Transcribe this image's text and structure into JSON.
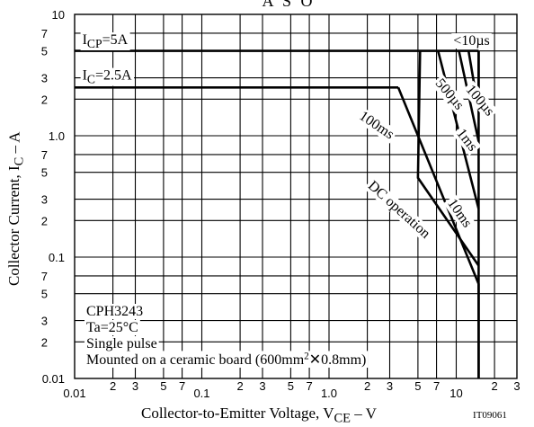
{
  "chart_data": {
    "type": "line",
    "title": "A S O",
    "xlabel": "Collector-to-Emitter Voltage, V",
    "xlabel_sub": "CE",
    "xlabel_unit": "– V",
    "ylabel": "Collector Current, I",
    "ylabel_sub": "C",
    "ylabel_unit": "– A",
    "figure_code": "IT09061",
    "x_scale": "log",
    "y_scale": "log",
    "xlim": [
      0.01,
      30
    ],
    "ylim": [
      0.01,
      10
    ],
    "grid": true,
    "x_major_ticks": [
      {
        "v": 0.01,
        "t": "0.01"
      },
      {
        "v": 0.1,
        "t": "0.1"
      },
      {
        "v": 1,
        "t": "1.0"
      },
      {
        "v": 10,
        "t": "10"
      }
    ],
    "x_minor_ticks": [
      {
        "v": 0.02,
        "t": "2"
      },
      {
        "v": 0.03,
        "t": "3"
      },
      {
        "v": 0.05,
        "t": "5"
      },
      {
        "v": 0.07,
        "t": "7"
      },
      {
        "v": 0.2,
        "t": "2"
      },
      {
        "v": 0.3,
        "t": "3"
      },
      {
        "v": 0.5,
        "t": "5"
      },
      {
        "v": 0.7,
        "t": "7"
      },
      {
        "v": 2,
        "t": "2"
      },
      {
        "v": 3,
        "t": "3"
      },
      {
        "v": 5,
        "t": "5"
      },
      {
        "v": 7,
        "t": "7"
      },
      {
        "v": 20,
        "t": "2"
      },
      {
        "v": 30,
        "t": "3"
      }
    ],
    "y_major_ticks": [
      {
        "v": 0.01,
        "t": "0.01"
      },
      {
        "v": 0.1,
        "t": "0.1"
      },
      {
        "v": 1,
        "t": "1.0"
      },
      {
        "v": 10,
        "t": "10"
      }
    ],
    "y_minor_ticks": [
      {
        "v": 0.02,
        "t": "2"
      },
      {
        "v": 0.03,
        "t": "3"
      },
      {
        "v": 0.05,
        "t": "5"
      },
      {
        "v": 0.07,
        "t": "7"
      },
      {
        "v": 0.2,
        "t": "2"
      },
      {
        "v": 0.3,
        "t": "3"
      },
      {
        "v": 0.5,
        "t": "5"
      },
      {
        "v": 0.7,
        "t": "7"
      },
      {
        "v": 2,
        "t": "2"
      },
      {
        "v": 3,
        "t": "3"
      },
      {
        "v": 5,
        "t": "5"
      },
      {
        "v": 7,
        "t": "7"
      }
    ],
    "series": [
      {
        "name": "I<sub>CP</sub>=5A",
        "points": [
          [
            0.01,
            5
          ],
          [
            15,
            5
          ]
        ]
      },
      {
        "name": "I<sub>C</sub>=2.5A",
        "points": [
          [
            0.01,
            2.5
          ],
          [
            3.5,
            2.5
          ]
        ]
      },
      {
        "name": "DC operation",
        "points": [
          [
            3.5,
            2.5
          ],
          [
            15,
            0.06
          ],
          [
            15,
            0.01
          ]
        ]
      },
      {
        "name": "100ms",
        "points": [
          [
            5.2,
            5
          ],
          [
            5,
            0.45
          ],
          [
            15,
            0.085
          ]
        ]
      },
      {
        "name": "10ms",
        "points": [
          [
            7.2,
            5
          ],
          [
            15,
            0.25
          ]
        ]
      },
      {
        "name": "1ms",
        "points": [
          [
            10.5,
            5
          ],
          [
            15,
            0.9
          ]
        ]
      },
      {
        "name": "500µs",
        "points": [
          [
            12.5,
            5
          ],
          [
            15,
            1.6
          ]
        ]
      },
      {
        "name": "100µs",
        "points": [
          [
            15,
            5
          ],
          [
            15,
            2
          ]
        ]
      },
      {
        "name": "<10µs",
        "points": [
          [
            15,
            5
          ],
          [
            15,
            0.01
          ]
        ]
      }
    ],
    "curve_labels": [
      {
        "text": "100ms",
        "x": 1.7,
        "y": 1.4,
        "rotate": 34
      },
      {
        "text": "DC operation",
        "x": 2.0,
        "y": 0.38,
        "rotate": 42
      },
      {
        "text": "500µs",
        "x": 6.8,
        "y": 2.7,
        "rotate": 50
      },
      {
        "text": "100µs",
        "x": 11.8,
        "y": 2.4,
        "rotate": 50
      },
      {
        "text": "1ms",
        "x": 10.0,
        "y": 1.05,
        "rotate": 52
      },
      {
        "text": "10ms",
        "x": 8.5,
        "y": 0.28,
        "rotate": 55
      },
      {
        "text": "<10µs",
        "x": 9.5,
        "y": 5.6,
        "rotate": 0
      },
      {
        "text": "I<sub>CP</sub>=5A",
        "x": 0.0115,
        "y": 5.7,
        "rotate": 0
      },
      {
        "text": "I<sub>C</sub>=2.5A",
        "x": 0.0115,
        "y": 2.9,
        "rotate": 0
      }
    ],
    "annotations": [
      "CPH3243",
      "Ta=25°C",
      "Single pulse",
      "Mounted on a ceramic board (600mm<sup>2</sup>✕0.8mm)"
    ]
  }
}
